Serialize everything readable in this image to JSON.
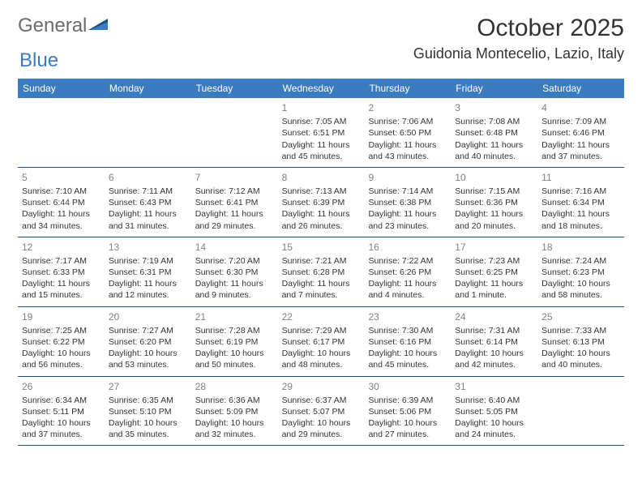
{
  "logo": {
    "text1": "General",
    "text2": "Blue"
  },
  "title": "October 2025",
  "location": "Guidonia Montecelio, Lazio, Italy",
  "weekdays": [
    "Sunday",
    "Monday",
    "Tuesday",
    "Wednesday",
    "Thursday",
    "Friday",
    "Saturday"
  ],
  "colors": {
    "header_bg": "#3b7bbf",
    "header_text": "#ffffff",
    "row_border": "#1e4f7a",
    "daynum": "#808080",
    "body_text": "#333333",
    "logo_gray": "#6b6b6b",
    "logo_blue": "#3b7bbf"
  },
  "weeks": [
    [
      null,
      null,
      null,
      {
        "n": "1",
        "sunrise": "7:05 AM",
        "sunset": "6:51 PM",
        "daylight": "11 hours and 45 minutes."
      },
      {
        "n": "2",
        "sunrise": "7:06 AM",
        "sunset": "6:50 PM",
        "daylight": "11 hours and 43 minutes."
      },
      {
        "n": "3",
        "sunrise": "7:08 AM",
        "sunset": "6:48 PM",
        "daylight": "11 hours and 40 minutes."
      },
      {
        "n": "4",
        "sunrise": "7:09 AM",
        "sunset": "6:46 PM",
        "daylight": "11 hours and 37 minutes."
      }
    ],
    [
      {
        "n": "5",
        "sunrise": "7:10 AM",
        "sunset": "6:44 PM",
        "daylight": "11 hours and 34 minutes."
      },
      {
        "n": "6",
        "sunrise": "7:11 AM",
        "sunset": "6:43 PM",
        "daylight": "11 hours and 31 minutes."
      },
      {
        "n": "7",
        "sunrise": "7:12 AM",
        "sunset": "6:41 PM",
        "daylight": "11 hours and 29 minutes."
      },
      {
        "n": "8",
        "sunrise": "7:13 AM",
        "sunset": "6:39 PM",
        "daylight": "11 hours and 26 minutes."
      },
      {
        "n": "9",
        "sunrise": "7:14 AM",
        "sunset": "6:38 PM",
        "daylight": "11 hours and 23 minutes."
      },
      {
        "n": "10",
        "sunrise": "7:15 AM",
        "sunset": "6:36 PM",
        "daylight": "11 hours and 20 minutes."
      },
      {
        "n": "11",
        "sunrise": "7:16 AM",
        "sunset": "6:34 PM",
        "daylight": "11 hours and 18 minutes."
      }
    ],
    [
      {
        "n": "12",
        "sunrise": "7:17 AM",
        "sunset": "6:33 PM",
        "daylight": "11 hours and 15 minutes."
      },
      {
        "n": "13",
        "sunrise": "7:19 AM",
        "sunset": "6:31 PM",
        "daylight": "11 hours and 12 minutes."
      },
      {
        "n": "14",
        "sunrise": "7:20 AM",
        "sunset": "6:30 PM",
        "daylight": "11 hours and 9 minutes."
      },
      {
        "n": "15",
        "sunrise": "7:21 AM",
        "sunset": "6:28 PM",
        "daylight": "11 hours and 7 minutes."
      },
      {
        "n": "16",
        "sunrise": "7:22 AM",
        "sunset": "6:26 PM",
        "daylight": "11 hours and 4 minutes."
      },
      {
        "n": "17",
        "sunrise": "7:23 AM",
        "sunset": "6:25 PM",
        "daylight": "11 hours and 1 minute."
      },
      {
        "n": "18",
        "sunrise": "7:24 AM",
        "sunset": "6:23 PM",
        "daylight": "10 hours and 58 minutes."
      }
    ],
    [
      {
        "n": "19",
        "sunrise": "7:25 AM",
        "sunset": "6:22 PM",
        "daylight": "10 hours and 56 minutes."
      },
      {
        "n": "20",
        "sunrise": "7:27 AM",
        "sunset": "6:20 PM",
        "daylight": "10 hours and 53 minutes."
      },
      {
        "n": "21",
        "sunrise": "7:28 AM",
        "sunset": "6:19 PM",
        "daylight": "10 hours and 50 minutes."
      },
      {
        "n": "22",
        "sunrise": "7:29 AM",
        "sunset": "6:17 PM",
        "daylight": "10 hours and 48 minutes."
      },
      {
        "n": "23",
        "sunrise": "7:30 AM",
        "sunset": "6:16 PM",
        "daylight": "10 hours and 45 minutes."
      },
      {
        "n": "24",
        "sunrise": "7:31 AM",
        "sunset": "6:14 PM",
        "daylight": "10 hours and 42 minutes."
      },
      {
        "n": "25",
        "sunrise": "7:33 AM",
        "sunset": "6:13 PM",
        "daylight": "10 hours and 40 minutes."
      }
    ],
    [
      {
        "n": "26",
        "sunrise": "6:34 AM",
        "sunset": "5:11 PM",
        "daylight": "10 hours and 37 minutes."
      },
      {
        "n": "27",
        "sunrise": "6:35 AM",
        "sunset": "5:10 PM",
        "daylight": "10 hours and 35 minutes."
      },
      {
        "n": "28",
        "sunrise": "6:36 AM",
        "sunset": "5:09 PM",
        "daylight": "10 hours and 32 minutes."
      },
      {
        "n": "29",
        "sunrise": "6:37 AM",
        "sunset": "5:07 PM",
        "daylight": "10 hours and 29 minutes."
      },
      {
        "n": "30",
        "sunrise": "6:39 AM",
        "sunset": "5:06 PM",
        "daylight": "10 hours and 27 minutes."
      },
      {
        "n": "31",
        "sunrise": "6:40 AM",
        "sunset": "5:05 PM",
        "daylight": "10 hours and 24 minutes."
      },
      null
    ]
  ],
  "labels": {
    "sunrise": "Sunrise:",
    "sunset": "Sunset:",
    "daylight": "Daylight:"
  }
}
